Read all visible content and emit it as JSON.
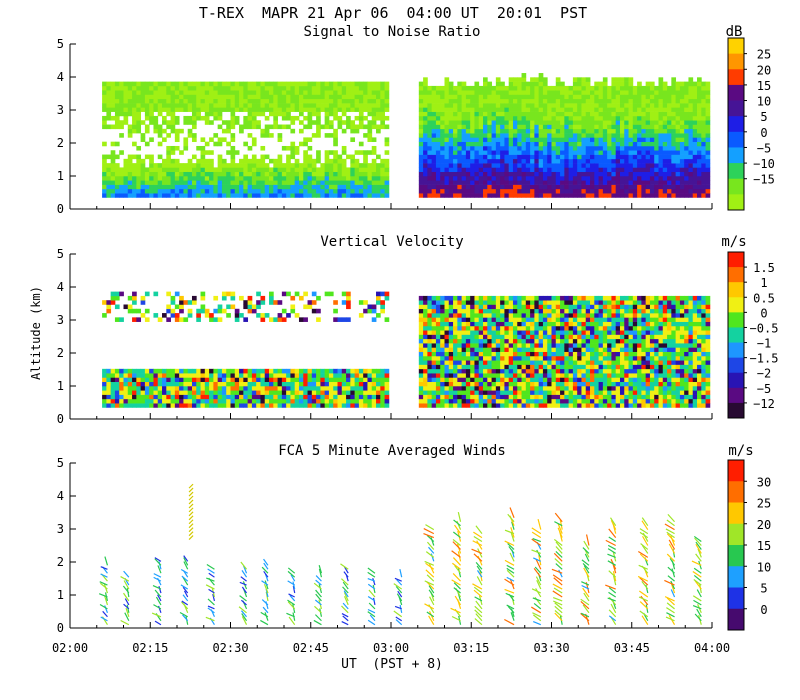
{
  "title": "T-REX  MAPR 21 Apr 06  04:00 UT  20:01  PST",
  "xlabel": "UT  (PST + 8)",
  "ylabel": "Altitude (km)",
  "chart_data": [
    {
      "type": "heatmap",
      "title": "Signal to Noise Ratio",
      "units": "dB",
      "xlim_minutes_ut": [
        120,
        240
      ],
      "ylim_km": [
        0,
        5
      ],
      "yticks": [
        "0",
        "1",
        "2",
        "3",
        "4",
        "5"
      ],
      "xticks": [
        "02:00",
        "02:15",
        "02:30",
        "02:45",
        "03:00",
        "03:15",
        "03:30",
        "03:45",
        "04:00"
      ],
      "data_gap_minutes_ut": [
        179.5,
        185
      ],
      "colorbar": {
        "labels": [
          "25",
          "20",
          "15",
          "10",
          "5",
          "0",
          "−5",
          "−10",
          "−15"
        ],
        "colors": [
          "#ffd200",
          "#ff9600",
          "#ff3c00",
          "#5a0a82",
          "#461496",
          "#1e1ee6",
          "#0a5aff",
          "#14a0ff",
          "#2dd25a",
          "#78e61e",
          "#a0f014"
        ]
      }
    },
    {
      "type": "heatmap",
      "title": "Vertical Velocity",
      "units": "m/s",
      "xlim_minutes_ut": [
        120,
        240
      ],
      "ylim_km": [
        0,
        5
      ],
      "yticks": [
        "0",
        "1",
        "2",
        "3",
        "4",
        "5"
      ],
      "xticks": [
        "02:00",
        "02:15",
        "02:30",
        "02:45",
        "03:00",
        "03:15",
        "03:30",
        "03:45",
        "04:00"
      ],
      "data_gap_minutes_ut": [
        179.5,
        185
      ],
      "colorbar": {
        "labels": [
          "1.5",
          "1",
          "0.5",
          "0",
          "−0.5",
          "−1",
          "−1.5",
          "−2",
          "−5",
          "−12"
        ],
        "colors": [
          "#ff1e00",
          "#ff6e00",
          "#ffc800",
          "#f0f014",
          "#50e61e",
          "#14d2a0",
          "#1e96ff",
          "#1e46e6",
          "#2814b4",
          "#5a0a82",
          "#280a32"
        ]
      }
    },
    {
      "type": "scatter",
      "title": "FCA 5 Minute Averaged Winds",
      "units": "m/s",
      "xlim_minutes_ut": [
        120,
        240
      ],
      "ylim_km": [
        0,
        5
      ],
      "yticks": [
        "0",
        "1",
        "2",
        "3",
        "4",
        "5"
      ],
      "xticks": [
        "02:00",
        "02:15",
        "02:30",
        "02:45",
        "03:00",
        "03:15",
        "03:30",
        "03:45",
        "04:00"
      ],
      "profile_times_minutes_ut": [
        127,
        131,
        137,
        142,
        147,
        153,
        157,
        162,
        167,
        172,
        177,
        182,
        188,
        193,
        197,
        203,
        208,
        212,
        217,
        222,
        228,
        233,
        238
      ],
      "colorbar": {
        "labels": [
          "30",
          "25",
          "20",
          "15",
          "10",
          "5",
          "0"
        ],
        "colors": [
          "#ff1e00",
          "#ff6e00",
          "#ffc800",
          "#a0e628",
          "#28c850",
          "#1ea0ff",
          "#1e32e6",
          "#460a6e"
        ]
      }
    }
  ]
}
